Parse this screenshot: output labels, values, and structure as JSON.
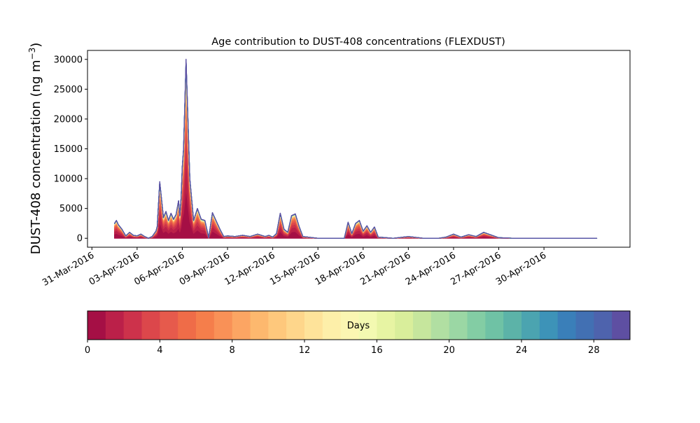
{
  "chart_data": {
    "type": "area",
    "stacked": true,
    "title": "Age contribution to DUST-408 concentrations (FLEXDUST)",
    "ylabel": "DUST-408 concentration (ng m",
    "ylabel_exponent": "−3",
    "ylabel_close": ")",
    "xlabel": "",
    "xlim": [
      "2016-03-30T17:00",
      "2016-05-05T17:00"
    ],
    "ylim": [
      -1500,
      31500
    ],
    "yticks": [
      0,
      5000,
      10000,
      15000,
      20000,
      25000,
      30000
    ],
    "xticks": [
      {
        "date": "2016-03-31",
        "label": "31-Mar-2016"
      },
      {
        "date": "2016-04-03",
        "label": "03-Apr-2016"
      },
      {
        "date": "2016-04-06",
        "label": "06-Apr-2016"
      },
      {
        "date": "2016-04-09",
        "label": "09-Apr-2016"
      },
      {
        "date": "2016-04-12",
        "label": "12-Apr-2016"
      },
      {
        "date": "2016-04-15",
        "label": "15-Apr-2016"
      },
      {
        "date": "2016-04-18",
        "label": "18-Apr-2016"
      },
      {
        "date": "2016-04-21",
        "label": "21-Apr-2016"
      },
      {
        "date": "2016-04-24",
        "label": "24-Apr-2016"
      },
      {
        "date": "2016-04-27",
        "label": "27-Apr-2016"
      },
      {
        "date": "2016-04-30",
        "label": "30-Apr-2016"
      }
    ],
    "grid": false,
    "total_series": {
      "x": [
        "2016-04-01T12:00",
        "2016-04-01T15:00",
        "2016-04-01T18:00",
        "2016-04-02T00:00",
        "2016-04-02T06:00",
        "2016-04-02T12:00",
        "2016-04-02T18:00",
        "2016-04-03T00:00",
        "2016-04-03T06:00",
        "2016-04-03T12:00",
        "2016-04-03T18:00",
        "2016-04-04T00:00",
        "2016-04-04T06:00",
        "2016-04-04T08:00",
        "2016-04-04T12:00",
        "2016-04-04T18:00",
        "2016-04-04T22:00",
        "2016-04-05T02:00",
        "2016-04-05T06:00",
        "2016-04-05T10:00",
        "2016-04-05T14:00",
        "2016-04-05T18:00",
        "2016-04-05T20:00",
        "2016-04-05T22:00",
        "2016-04-06T00:00",
        "2016-04-06T02:00",
        "2016-04-06T06:00",
        "2016-04-06T12:00",
        "2016-04-06T18:00",
        "2016-04-07T00:00",
        "2016-04-07T06:00",
        "2016-04-07T12:00",
        "2016-04-07T18:00",
        "2016-04-08T00:00",
        "2016-04-08T12:00",
        "2016-04-08T18:00",
        "2016-04-09T00:00",
        "2016-04-09T12:00",
        "2016-04-10T00:00",
        "2016-04-10T12:00",
        "2016-04-11T00:00",
        "2016-04-11T12:00",
        "2016-04-11T18:00",
        "2016-04-12T00:00",
        "2016-04-12T06:00",
        "2016-04-12T12:00",
        "2016-04-12T18:00",
        "2016-04-13T00:00",
        "2016-04-13T06:00",
        "2016-04-13T12:00",
        "2016-04-13T18:00",
        "2016-04-14T00:00",
        "2016-04-15T00:00",
        "2016-04-16T00:00",
        "2016-04-16T18:00",
        "2016-04-17T00:00",
        "2016-04-17T06:00",
        "2016-04-17T12:00",
        "2016-04-17T18:00",
        "2016-04-18T00:00",
        "2016-04-18T06:00",
        "2016-04-18T12:00",
        "2016-04-18T18:00",
        "2016-04-19T00:00",
        "2016-04-20T00:00",
        "2016-04-21T00:00",
        "2016-04-22T00:00",
        "2016-04-23T00:00",
        "2016-04-23T12:00",
        "2016-04-24T00:00",
        "2016-04-24T12:00",
        "2016-04-25T00:00",
        "2016-04-25T12:00",
        "2016-04-26T00:00",
        "2016-04-27T00:00",
        "2016-04-28T00:00",
        "2016-04-29T00:00",
        "2016-04-30T00:00",
        "2016-05-01T00:00",
        "2016-05-02T00:00",
        "2016-05-03T00:00",
        "2016-05-03T12:00"
      ],
      "y": [
        2500,
        3000,
        2300,
        1500,
        400,
        1000,
        500,
        400,
        700,
        300,
        0,
        300,
        1200,
        2000,
        9500,
        3500,
        4500,
        3000,
        4200,
        3200,
        4000,
        6300,
        3800,
        6800,
        12000,
        15000,
        30000,
        10000,
        3000,
        5000,
        3200,
        3000,
        100,
        4300,
        1500,
        300,
        400,
        300,
        500,
        300,
        700,
        300,
        500,
        200,
        800,
        4200,
        1500,
        1000,
        3800,
        4100,
        2000,
        300,
        0,
        0,
        0,
        2700,
        800,
        2500,
        3000,
        1200,
        2100,
        1000,
        1900,
        200,
        0,
        300,
        0,
        0,
        200,
        700,
        200,
        600,
        300,
        1000,
        100,
        0,
        0,
        0,
        0,
        0,
        0,
        0
      ],
      "age_profile": [
        0.28,
        0.18,
        0.12,
        0.09,
        0.07,
        0.05,
        0.04,
        0.03,
        0.025,
        0.02,
        0.015,
        0.012,
        0.01,
        0.008,
        0.007,
        0.006,
        0.005,
        0.004,
        0.004,
        0.003,
        0.003,
        0.003,
        0.002,
        0.002,
        0.002,
        0.002,
        0.002,
        0.002,
        0.002,
        0.002
      ]
    },
    "colorbar": {
      "label": "Days",
      "range": [
        0,
        30
      ],
      "bins": 30,
      "ticks": [
        0,
        4,
        8,
        12,
        16,
        20,
        24,
        28
      ],
      "colors": [
        "#a50f45",
        "#bb2049",
        "#cd324b",
        "#dc474b",
        "#e65a4c",
        "#ef6c48",
        "#f57e4b",
        "#f99157",
        "#fca563",
        "#fdb86e",
        "#fec87c",
        "#fed68b",
        "#fee39a",
        "#fdefa9",
        "#fbf6b2",
        "#f3f9b1",
        "#e7f4a3",
        "#d9ee9b",
        "#c6e69d",
        "#b1dfa2",
        "#9bd7a4",
        "#83cda4",
        "#6fc2a5",
        "#5cb3a8",
        "#4ba4b0",
        "#3d93b8",
        "#3a7fb9",
        "#4270b3",
        "#4e63ad",
        "#5e4fa2"
      ]
    }
  }
}
